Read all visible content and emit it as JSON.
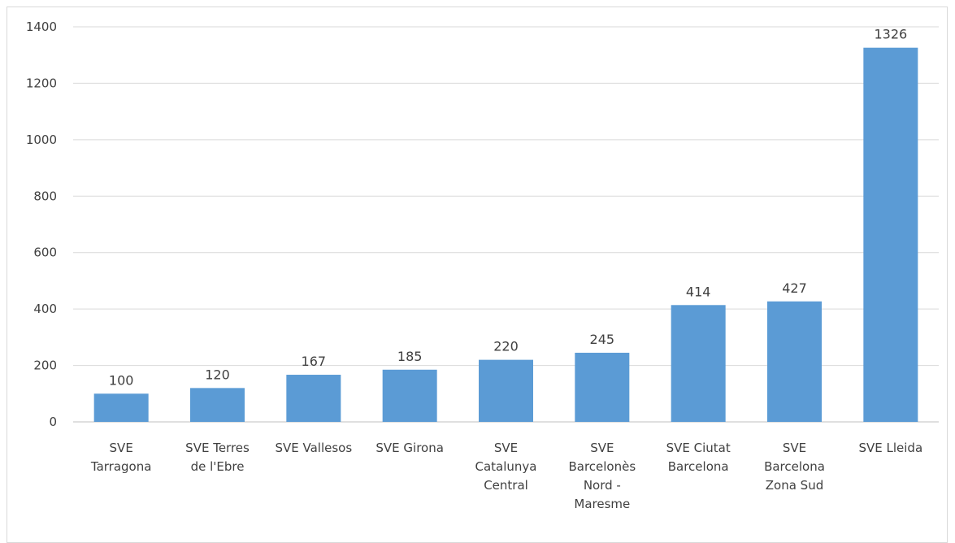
{
  "chart_data": {
    "type": "bar",
    "title": "",
    "xlabel": "",
    "ylabel": "",
    "ylim": [
      0,
      1400
    ],
    "yticks": [
      0,
      200,
      400,
      600,
      800,
      1000,
      1200,
      1400
    ],
    "grid": true,
    "legend": "none",
    "bar_color": "#5b9bd5",
    "categories": [
      [
        "SVE",
        "Tarragona"
      ],
      [
        "SVE Terres",
        "de l'Ebre"
      ],
      [
        "SVE Vallesos"
      ],
      [
        "SVE Girona"
      ],
      [
        "SVE",
        "Catalunya",
        "Central"
      ],
      [
        "SVE",
        "Barcelonès",
        "Nord -",
        "Maresme"
      ],
      [
        "SVE Ciutat",
        "Barcelona"
      ],
      [
        "SVE",
        "Barcelona",
        "Zona Sud"
      ],
      [
        "SVE Lleida"
      ]
    ],
    "values": [
      100,
      120,
      167,
      185,
      220,
      245,
      414,
      427,
      1326
    ]
  }
}
